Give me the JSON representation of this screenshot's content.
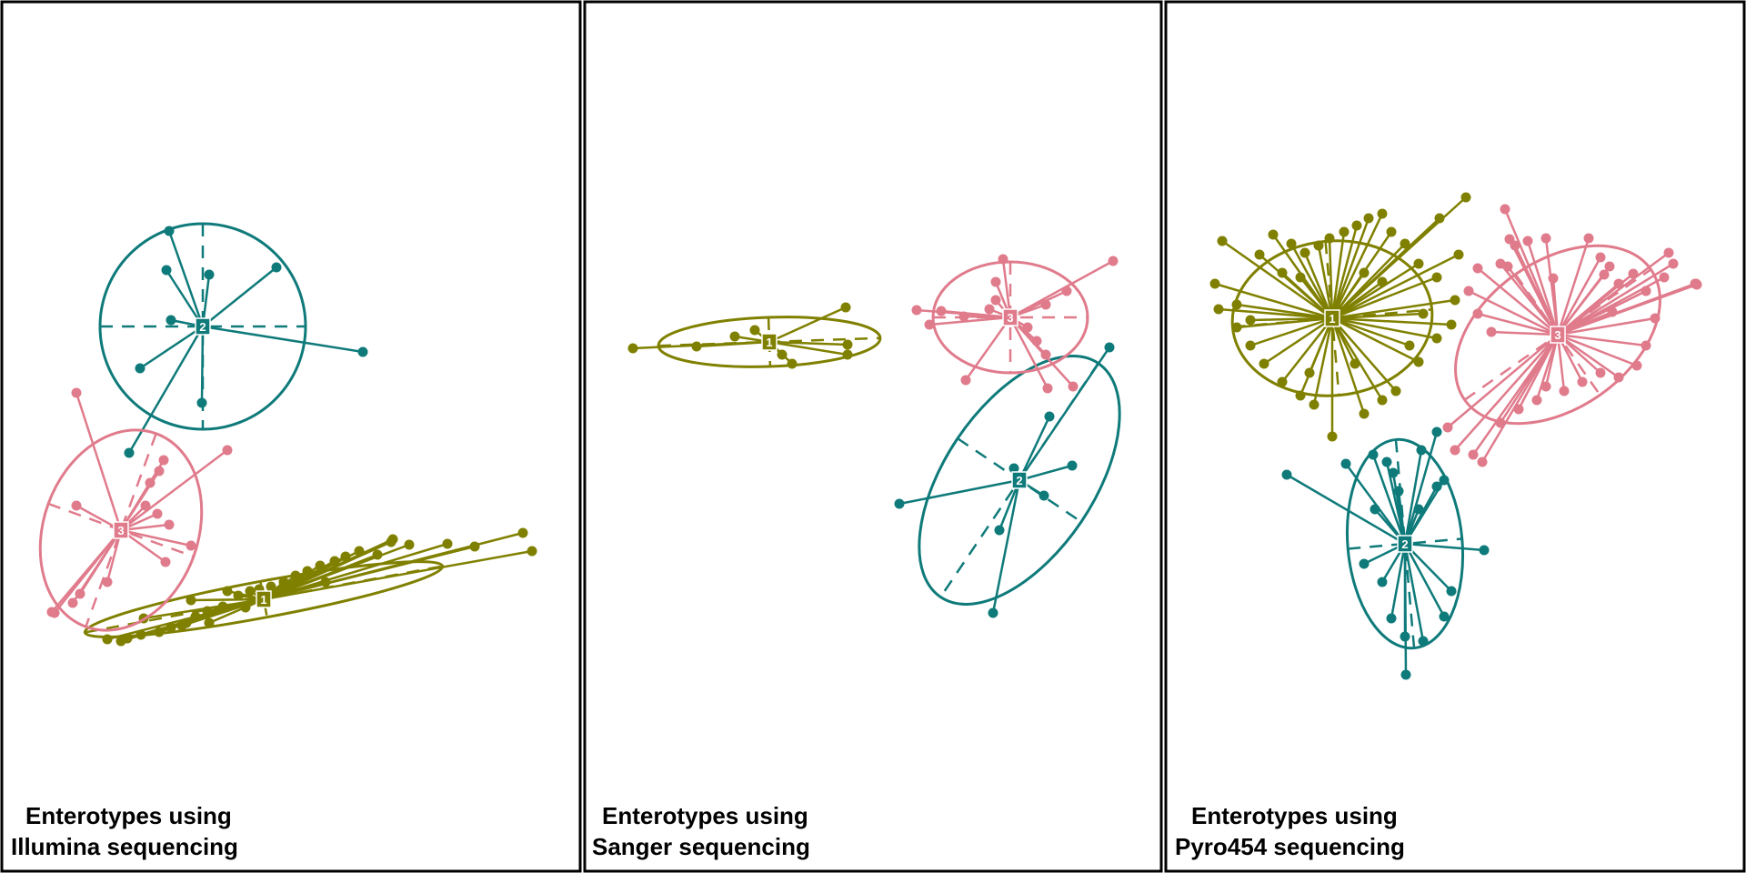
{
  "chart_data": [
    {
      "type": "scatter",
      "caption_line1": "Enterotypes using",
      "caption_line2": "Illumina sequencing",
      "clusters": [
        {
          "label": "1",
          "color": "#808000",
          "centroid": [
            290,
            659
          ],
          "ellipse": {
            "rx": 200,
            "ry": 20,
            "angle": -10.5
          },
          "points": [
            [
              118,
              703
            ],
            [
              133,
              705
            ],
            [
              140,
              702
            ],
            [
              155,
              698
            ],
            [
              158,
              680
            ],
            [
              175,
              695
            ],
            [
              188,
              690
            ],
            [
              205,
              685
            ],
            [
              210,
              660
            ],
            [
              215,
              678
            ],
            [
              228,
              672
            ],
            [
              245,
              667
            ],
            [
              250,
              650
            ],
            [
              262,
              655
            ],
            [
              275,
              650
            ],
            [
              285,
              648
            ],
            [
              298,
              645
            ],
            [
              312,
              640
            ],
            [
              325,
              633
            ],
            [
              338,
              628
            ],
            [
              352,
              622
            ],
            [
              368,
              617
            ],
            [
              380,
              612
            ],
            [
              395,
              606
            ],
            [
              415,
              610
            ],
            [
              430,
              596
            ],
            [
              432,
              593
            ],
            [
              450,
              599
            ],
            [
              492,
              598
            ],
            [
              522,
              601
            ],
            [
              575,
              586
            ],
            [
              585,
              606
            ],
            [
              358,
              640
            ],
            [
              320,
              644
            ],
            [
              270,
              668
            ],
            [
              230,
              685
            ],
            [
              200,
              688
            ]
          ]
        },
        {
          "label": "2",
          "color": "#0f7a7a",
          "centroid": [
            223,
            359
          ],
          "ellipse": {
            "rx": 113,
            "ry": 113,
            "angle": 0
          },
          "points": [
            [
              186,
              254
            ],
            [
              183,
              297
            ],
            [
              230,
              302
            ],
            [
              304,
              294
            ],
            [
              188,
              352
            ],
            [
              154,
              405
            ],
            [
              222,
              443
            ],
            [
              399,
              387
            ],
            [
              142,
              498
            ]
          ]
        },
        {
          "label": "3",
          "color": "#e07b8c",
          "centroid": [
            133,
            583
          ],
          "ellipse": {
            "rx": 85,
            "ry": 113,
            "angle": 20
          },
          "points": [
            [
              84,
              432
            ],
            [
              250,
              495
            ],
            [
              180,
              506
            ],
            [
              175,
              518
            ],
            [
              165,
              531
            ],
            [
              160,
              556
            ],
            [
              173,
              565
            ],
            [
              186,
              577
            ],
            [
              210,
              600
            ],
            [
              182,
              618
            ],
            [
              118,
              640
            ],
            [
              88,
              653
            ],
            [
              80,
              663
            ],
            [
              57,
              673
            ],
            [
              60,
              674
            ],
            [
              84,
              556
            ]
          ]
        }
      ]
    },
    {
      "type": "scatter",
      "caption_line1": "Enterotypes using",
      "caption_line2": "Sanger sequencing",
      "clusters": [
        {
          "label": "1",
          "color": "#808000",
          "centroid": [
            846,
            376
          ],
          "ellipse": {
            "rx": 122,
            "ry": 27,
            "angle": -2
          },
          "points": [
            [
              696,
              383
            ],
            [
              766,
              381
            ],
            [
              808,
              370
            ],
            [
              830,
              363
            ],
            [
              930,
              338
            ],
            [
              932,
              379
            ],
            [
              932,
              390
            ],
            [
              871,
              400
            ],
            [
              860,
              390
            ]
          ]
        },
        {
          "label": "2",
          "color": "#0f7a7a",
          "centroid": [
            1121,
            528
          ],
          "ellipse": {
            "rx": 82,
            "ry": 155,
            "angle": 34
          },
          "points": [
            [
              1220,
              382
            ],
            [
              1154,
              458
            ],
            [
              1179,
              512
            ],
            [
              1148,
              545
            ],
            [
              1099,
              583
            ],
            [
              1092,
              674
            ],
            [
              989,
              554
            ],
            [
              1115,
              515
            ]
          ]
        },
        {
          "label": "3",
          "color": "#e07b8c",
          "centroid": [
            1111,
            349
          ],
          "ellipse": {
            "rx": 85,
            "ry": 61,
            "angle": 0
          },
          "points": [
            [
              1224,
              287
            ],
            [
              1173,
              320
            ],
            [
              1150,
              335
            ],
            [
              1103,
              285
            ],
            [
              1095,
              310
            ],
            [
              1008,
              341
            ],
            [
              1022,
              357
            ],
            [
              1035,
              342
            ],
            [
              1060,
              348
            ],
            [
              1095,
              330
            ],
            [
              1130,
              360
            ],
            [
              1140,
              375
            ],
            [
              1150,
              390
            ],
            [
              1062,
              418
            ],
            [
              1152,
              427
            ],
            [
              1180,
              425
            ],
            [
              1088,
              340
            ]
          ]
        }
      ]
    },
    {
      "type": "scatter",
      "caption_line1": "Enterotypes using",
      "caption_line2": "Pyro454 sequencing",
      "clusters": [
        {
          "label": "1",
          "color": "#808000",
          "centroid": [
            1465,
            350
          ],
          "ellipse": {
            "rx": 110,
            "ry": 85,
            "angle": -5
          },
          "points": [
            [
              1344,
              265
            ],
            [
              1336,
              312
            ],
            [
              1340,
              340
            ],
            [
              1360,
              360
            ],
            [
              1375,
              380
            ],
            [
              1390,
              400
            ],
            [
              1410,
              420
            ],
            [
              1430,
              435
            ],
            [
              1445,
              445
            ],
            [
              1465,
              480
            ],
            [
              1500,
              455
            ],
            [
              1520,
              440
            ],
            [
              1535,
              430
            ],
            [
              1560,
              398
            ],
            [
              1580,
              372
            ],
            [
              1596,
              357
            ],
            [
              1600,
              330
            ],
            [
              1580,
              305
            ],
            [
              1560,
              290
            ],
            [
              1545,
              268
            ],
            [
              1530,
              255
            ],
            [
              1520,
              235
            ],
            [
              1505,
              240
            ],
            [
              1492,
              248
            ],
            [
              1478,
              255
            ],
            [
              1462,
              262
            ],
            [
              1450,
              270
            ],
            [
              1435,
              278
            ],
            [
              1420,
              268
            ],
            [
              1400,
              258
            ],
            [
              1385,
              280
            ],
            [
              1410,
              300
            ],
            [
              1430,
              305
            ],
            [
              1550,
              380
            ],
            [
              1565,
              345
            ],
            [
              1612,
              217
            ],
            [
              1604,
              280
            ],
            [
              1583,
              240
            ],
            [
              1440,
              410
            ],
            [
              1360,
              335
            ],
            [
              1375,
              352
            ],
            [
              1500,
              300
            ],
            [
              1520,
              310
            ],
            [
              1490,
              400
            ]
          ]
        },
        {
          "label": "2",
          "color": "#0f7a7a",
          "centroid": [
            1545,
            598
          ],
          "ellipse": {
            "rx": 63,
            "ry": 115,
            "angle": -5
          },
          "points": [
            [
              1415,
              522
            ],
            [
              1480,
              510
            ],
            [
              1510,
              500
            ],
            [
              1525,
              508
            ],
            [
              1532,
              520
            ],
            [
              1538,
              540
            ],
            [
              1580,
              535
            ],
            [
              1588,
              528
            ],
            [
              1563,
              495
            ],
            [
              1632,
              605
            ],
            [
              1596,
              650
            ],
            [
              1588,
              678
            ],
            [
              1546,
              742
            ],
            [
              1565,
              705
            ],
            [
              1520,
              640
            ],
            [
              1530,
              680
            ],
            [
              1545,
              700
            ],
            [
              1500,
              620
            ],
            [
              1512,
              560
            ],
            [
              1580,
              475
            ],
            [
              1560,
              560
            ]
          ]
        },
        {
          "label": "3",
          "color": "#e07b8c",
          "centroid": [
            1713,
            368
          ],
          "ellipse": {
            "rx": 125,
            "ry": 81,
            "angle": -35
          },
          "points": [
            [
              1592,
              470
            ],
            [
              1600,
              495
            ],
            [
              1620,
              500
            ],
            [
              1630,
              508
            ],
            [
              1650,
              465
            ],
            [
              1670,
              450
            ],
            [
              1690,
              440
            ],
            [
              1700,
              425
            ],
            [
              1720,
              430
            ],
            [
              1740,
              420
            ],
            [
              1760,
              410
            ],
            [
              1780,
              415
            ],
            [
              1800,
              402
            ],
            [
              1810,
              380
            ],
            [
              1820,
              350
            ],
            [
              1810,
              320
            ],
            [
              1830,
              305
            ],
            [
              1840,
              290
            ],
            [
              1865,
              312
            ],
            [
              1864,
              312
            ],
            [
              1835,
              278
            ],
            [
              1770,
              293
            ],
            [
              1760,
              283
            ],
            [
              1747,
              262
            ],
            [
              1700,
              262
            ],
            [
              1680,
              265
            ],
            [
              1666,
              270
            ],
            [
              1650,
              290
            ],
            [
              1625,
              295
            ],
            [
              1615,
              320
            ],
            [
              1625,
              345
            ],
            [
              1640,
              365
            ],
            [
              1658,
              293
            ],
            [
              1866,
              313
            ],
            [
              1865,
              312
            ],
            [
              1764,
              302
            ],
            [
              1708,
              306
            ],
            [
              1796,
              301
            ],
            [
              1810,
              320
            ],
            [
              1773,
              343
            ],
            [
              1660,
              263
            ],
            [
              1655,
              230
            ],
            [
              1780,
              312
            ]
          ]
        }
      ]
    }
  ]
}
